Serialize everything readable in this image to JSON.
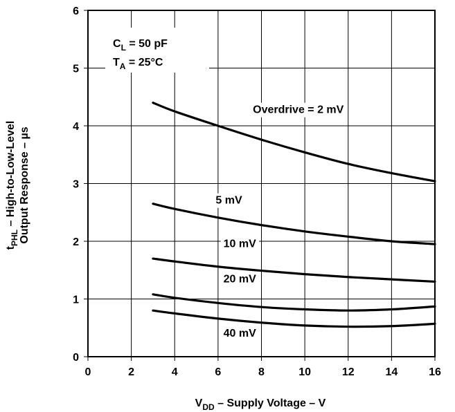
{
  "chart_data": {
    "type": "line",
    "xlabel_main": "V",
    "xlabel_sub": "DD",
    "xlabel_rest": " – Supply Voltage – V",
    "ylabel_line1_main": "t",
    "ylabel_line1_sub": "PHL",
    "ylabel_line1_rest": " – High-to-Low-Level",
    "ylabel_line2": "Output Response – µs",
    "xlim": [
      0,
      16
    ],
    "ylim": [
      0,
      6
    ],
    "x_ticks": [
      "0",
      "2",
      "4",
      "6",
      "8",
      "10",
      "12",
      "14",
      "16"
    ],
    "y_ticks": [
      "0",
      "1",
      "2",
      "3",
      "4",
      "5",
      "6"
    ],
    "grid": true,
    "conditions": {
      "cl_main": "C",
      "cl_sub": "L",
      "cl_rest": " = 50 pF",
      "ta_main": "T",
      "ta_sub": "A",
      "ta_rest": " =  25°C"
    },
    "series": [
      {
        "name": "Overdrive = 2 mV",
        "x": [
          3,
          4,
          6,
          8,
          10,
          12,
          14,
          16
        ],
        "values": [
          4.4,
          4.25,
          4.0,
          3.76,
          3.54,
          3.34,
          3.18,
          3.04
        ]
      },
      {
        "name": "5 mV",
        "x": [
          3,
          4,
          6,
          8,
          10,
          12,
          14,
          16
        ],
        "values": [
          2.65,
          2.56,
          2.41,
          2.28,
          2.17,
          2.08,
          2.0,
          1.95
        ]
      },
      {
        "name": "10 mV",
        "x": [
          3,
          4,
          6,
          8,
          10,
          12,
          14,
          16
        ],
        "values": [
          1.7,
          1.65,
          1.56,
          1.49,
          1.43,
          1.38,
          1.34,
          1.3
        ]
      },
      {
        "name": "20 mV",
        "x": [
          3,
          4,
          6,
          8,
          10,
          12,
          14,
          16
        ],
        "values": [
          1.08,
          1.02,
          0.93,
          0.86,
          0.82,
          0.8,
          0.82,
          0.87
        ]
      },
      {
        "name": "40 mV",
        "x": [
          3,
          4,
          6,
          8,
          10,
          12,
          14,
          16
        ],
        "values": [
          0.8,
          0.75,
          0.66,
          0.59,
          0.54,
          0.52,
          0.53,
          0.57
        ]
      }
    ]
  }
}
